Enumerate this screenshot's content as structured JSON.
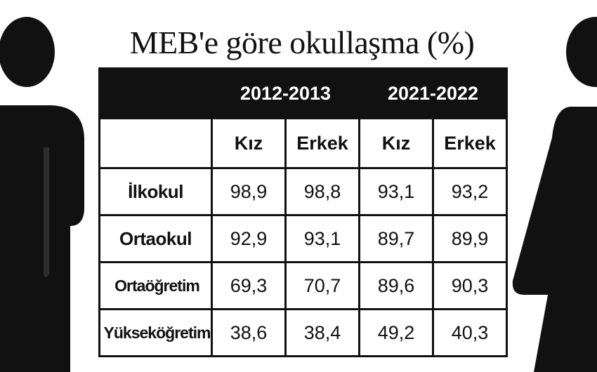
{
  "chart_data": {
    "type": "table",
    "title": "MEB'e göre okullaşma (%)",
    "period_headers": [
      "2012-2013",
      "2021-2022"
    ],
    "columns": [
      "Kız",
      "Erkek",
      "Kız",
      "Erkek"
    ],
    "rows": [
      {
        "label": "İlkokul",
        "values": [
          "98,9",
          "98,8",
          "93,1",
          "93,2"
        ]
      },
      {
        "label": "Ortaokul",
        "values": [
          "92,9",
          "93,1",
          "89,7",
          "89,9"
        ]
      },
      {
        "label": "Ortaöğretim",
        "values": [
          "69,3",
          "70,7",
          "89,6",
          "90,3"
        ]
      },
      {
        "label": "Yükseköğretim",
        "values": [
          "38,6",
          "38,4",
          "49,2",
          "40,3"
        ]
      }
    ]
  },
  "icons": {
    "left": "male-figure-icon",
    "right": "female-figure-icon"
  },
  "colors": {
    "header_bg": "#111111",
    "header_text": "#ffffff",
    "border": "#111111"
  }
}
